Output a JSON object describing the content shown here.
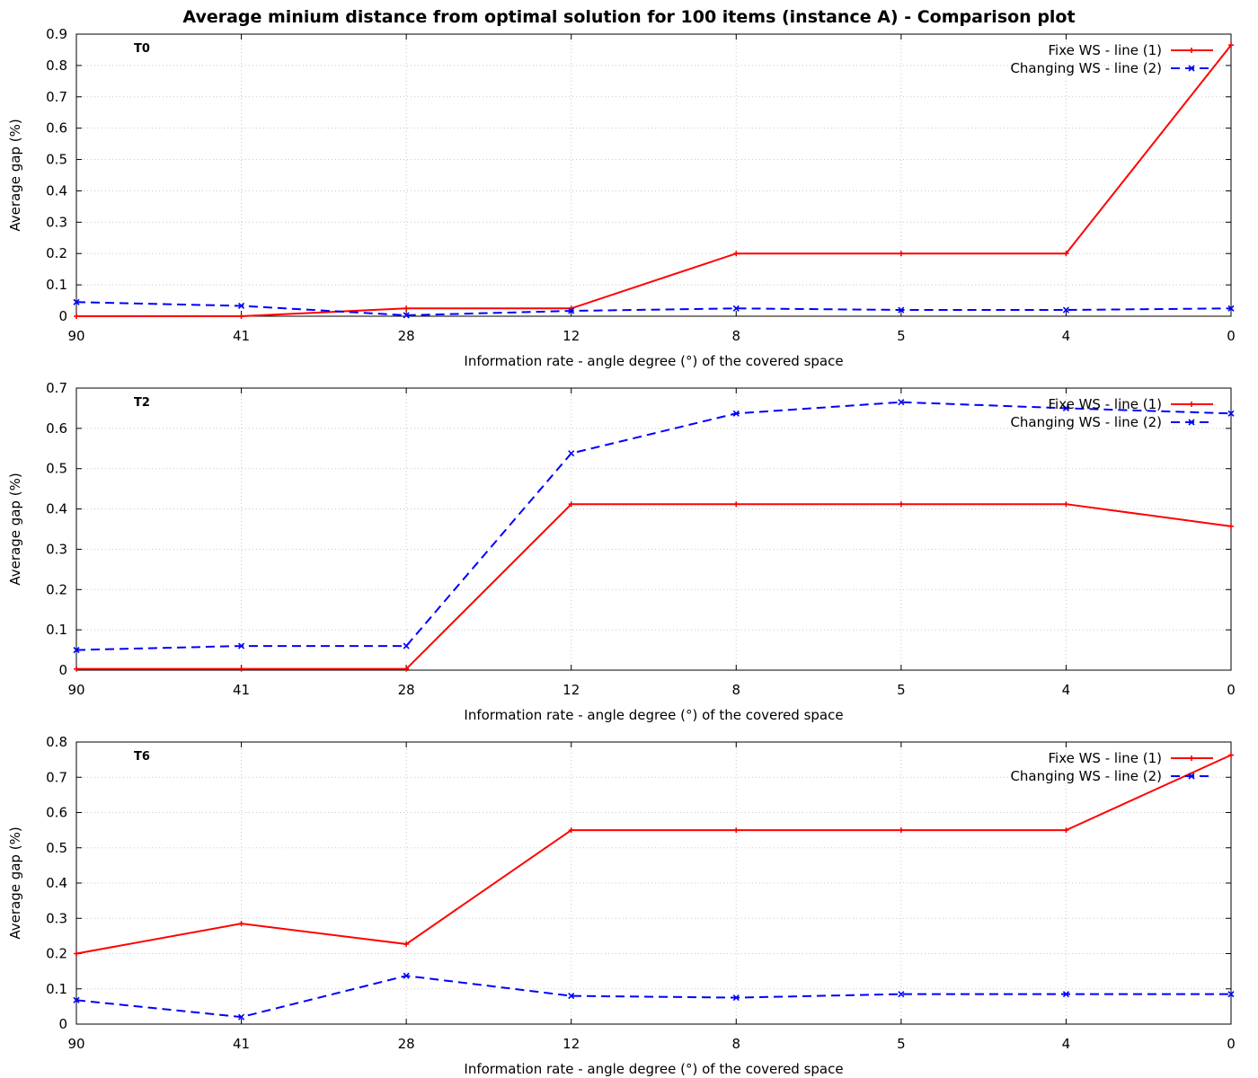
{
  "title": "Average minium distance from optimal solution for 100 items (instance A)  - Comparison plot",
  "colors": {
    "series1": "#ff0000",
    "series2": "#0000ff",
    "grid": "#c8c8c8",
    "axis": "#000000"
  },
  "chart_data": [
    {
      "type": "line",
      "panel_label": "T0",
      "categories": [
        "90",
        "41",
        "28",
        "12",
        "8",
        "5",
        "4",
        "0"
      ],
      "xlabel": "Information rate - angle degree (°)  of the covered space",
      "ylabel": "Average gap (%)",
      "ylim": [
        0,
        0.9
      ],
      "yticks": [
        "0",
        "0.1",
        "0.2",
        "0.3",
        "0.4",
        "0.5",
        "0.6",
        "0.7",
        "0.8",
        "0.9"
      ],
      "grid": true,
      "legend_position": "top-right",
      "series": [
        {
          "name": "Fixe WS - line (1)",
          "style": "solid",
          "marker": "+",
          "values": [
            0.0,
            0.0,
            0.025,
            0.025,
            0.2,
            0.2,
            0.2,
            0.865
          ]
        },
        {
          "name": "Changing WS - line (2)",
          "style": "dashed",
          "marker": "x",
          "values": [
            0.045,
            0.033,
            0.003,
            0.017,
            0.025,
            0.02,
            0.02,
            0.025
          ]
        }
      ]
    },
    {
      "type": "line",
      "panel_label": "T2",
      "categories": [
        "90",
        "41",
        "28",
        "12",
        "8",
        "5",
        "4",
        "0"
      ],
      "xlabel": "Information rate - angle degree (°)  of the covered space",
      "ylabel": "Average gap (%)",
      "ylim": [
        0,
        0.7
      ],
      "yticks": [
        "0",
        "0.1",
        "0.2",
        "0.3",
        "0.4",
        "0.5",
        "0.6",
        "0.7"
      ],
      "grid": true,
      "legend_position": "top-right",
      "series": [
        {
          "name": "Fixe WS - line (1)",
          "style": "solid",
          "marker": "+",
          "values": [
            0.003,
            0.003,
            0.003,
            0.412,
            0.412,
            0.412,
            0.412,
            0.357
          ]
        },
        {
          "name": "Changing WS - line (2)",
          "style": "dashed",
          "marker": "x",
          "values": [
            0.05,
            0.06,
            0.06,
            0.538,
            0.637,
            0.665,
            0.65,
            0.637
          ]
        }
      ]
    },
    {
      "type": "line",
      "panel_label": "T6",
      "categories": [
        "90",
        "41",
        "28",
        "12",
        "8",
        "5",
        "4",
        "0"
      ],
      "xlabel": "Information rate - angle degree (°)  of the covered space",
      "ylabel": "Average gap (%)",
      "ylim": [
        0,
        0.8
      ],
      "yticks": [
        "0",
        "0.1",
        "0.2",
        "0.3",
        "0.4",
        "0.5",
        "0.6",
        "0.7",
        "0.8"
      ],
      "grid": true,
      "legend_position": "top-right",
      "series": [
        {
          "name": "Fixe WS - line (1)",
          "style": "solid",
          "marker": "+",
          "values": [
            0.2,
            0.285,
            0.227,
            0.55,
            0.55,
            0.55,
            0.55,
            0.763
          ]
        },
        {
          "name": "Changing WS - line (2)",
          "style": "dashed",
          "marker": "x",
          "values": [
            0.068,
            0.02,
            0.137,
            0.08,
            0.075,
            0.085,
            0.085,
            0.085
          ]
        }
      ]
    }
  ]
}
